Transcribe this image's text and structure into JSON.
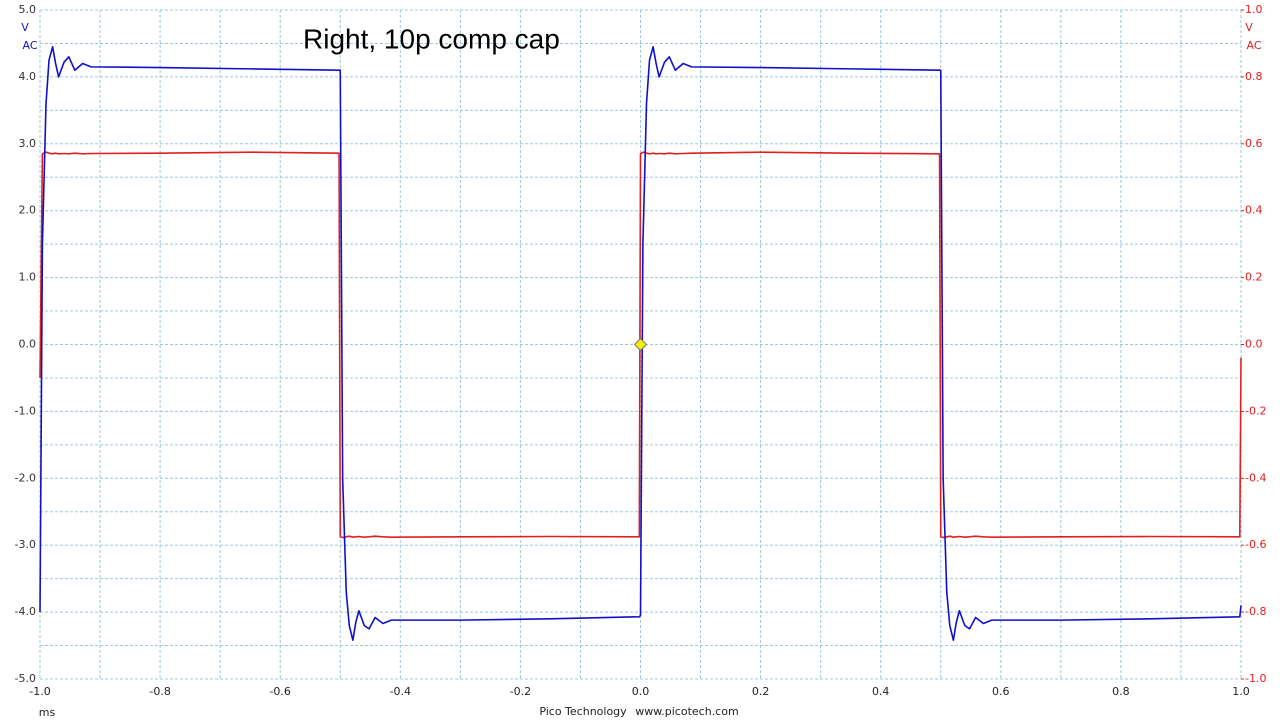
{
  "chart_data": {
    "type": "line",
    "title": "Right, 10p comp cap",
    "x_unit": "ms",
    "y_unit": "V",
    "y_coupling": "AC",
    "y2_unit": "V",
    "y2_coupling": "AC",
    "credit": "Pico Technology",
    "website": "www.picotech.com",
    "grid": true,
    "minor_grid": true,
    "xlim": [
      -1.0,
      1.0
    ],
    "xticks": [
      {
        "value": -1.0,
        "label": "-1.0"
      },
      -0.8,
      -0.6,
      -0.4,
      -0.2,
      {
        "value": 0.0,
        "label": "0.0"
      },
      0.2,
      0.4,
      0.6,
      0.8,
      {
        "value": 1.0,
        "label": "1.0"
      }
    ],
    "ylim": [
      -5.0,
      5.0
    ],
    "yticks": [
      {
        "value": 5.0,
        "label": "5.0"
      },
      {
        "value": 4.0,
        "label": "4.0"
      },
      {
        "value": 3.0,
        "label": "3.0"
      },
      {
        "value": 2.0,
        "label": "2.0"
      },
      {
        "value": 1.0,
        "label": "1.0"
      },
      {
        "value": 0.0,
        "label": "0.0"
      },
      {
        "value": -1.0,
        "label": "-1.0"
      },
      {
        "value": -2.0,
        "label": "-2.0"
      },
      {
        "value": -3.0,
        "label": "-3.0"
      },
      {
        "value": -4.0,
        "label": "-4.0"
      },
      {
        "value": -5.0,
        "label": "-5.0"
      }
    ],
    "y2lim": [
      -1.0,
      1.0
    ],
    "y2ticks": [
      {
        "value": 1.0,
        "label": "1.0"
      },
      0.8,
      0.6,
      0.4,
      0.2,
      {
        "value": 0.0,
        "label": "0.0"
      },
      -0.2,
      -0.4,
      -0.6,
      -0.8,
      {
        "value": -1.0,
        "label": "-1.0"
      }
    ],
    "trigger_x": 0,
    "trigger_y": 0,
    "x": [
      -1.0,
      -0.996,
      -0.99,
      -0.985,
      -0.979,
      -0.974,
      -0.969,
      -0.96,
      -0.952,
      -0.942,
      -0.929,
      -0.915,
      -0.8,
      -0.65,
      -0.502,
      -0.5,
      -0.496,
      -0.49,
      -0.485,
      -0.479,
      -0.474,
      -0.469,
      -0.46,
      -0.452,
      -0.442,
      -0.429,
      -0.415,
      -0.3,
      -0.15,
      -0.002,
      0.0,
      0.004,
      0.01,
      0.015,
      0.021,
      0.026,
      0.031,
      0.04,
      0.048,
      0.058,
      0.071,
      0.085,
      0.2,
      0.35,
      0.498,
      0.5,
      0.504,
      0.51,
      0.515,
      0.521,
      0.526,
      0.531,
      0.54,
      0.548,
      0.558,
      0.571,
      0.585,
      0.7,
      0.85,
      0.998,
      1.0
    ],
    "series": [
      {
        "color": "#e02020",
        "axis": "y2",
        "values": [
          -0.1,
          0.57,
          0.575,
          0.572,
          0.57,
          0.572,
          0.57,
          0.571,
          0.57,
          0.572,
          0.57,
          0.571,
          0.572,
          0.575,
          0.572,
          -0.575,
          -0.577,
          -0.575,
          -0.573,
          -0.576,
          -0.575,
          -0.574,
          -0.576,
          -0.575,
          -0.573,
          -0.575,
          -0.576,
          -0.575,
          -0.574,
          -0.575,
          0.57,
          0.575,
          0.572,
          0.57,
          0.572,
          0.57,
          0.571,
          0.57,
          0.572,
          0.57,
          0.571,
          0.572,
          0.575,
          0.572,
          0.57,
          -0.575,
          -0.577,
          -0.575,
          -0.573,
          -0.576,
          -0.575,
          -0.574,
          -0.576,
          -0.575,
          -0.573,
          -0.575,
          -0.576,
          -0.575,
          -0.574,
          -0.575,
          -0.04
        ]
      },
      {
        "color": "#1010c8",
        "values": [
          -4.0,
          1.5,
          3.6,
          4.25,
          4.45,
          4.2,
          4.0,
          4.22,
          4.3,
          4.1,
          4.2,
          4.15,
          4.14,
          4.12,
          4.1,
          4.1,
          -2.0,
          -3.7,
          -4.2,
          -4.42,
          -4.15,
          -3.98,
          -4.2,
          -4.25,
          -4.08,
          -4.17,
          -4.12,
          -4.12,
          -4.1,
          -4.07,
          -4.05,
          1.5,
          3.6,
          4.25,
          4.45,
          4.2,
          4.0,
          4.22,
          4.3,
          4.1,
          4.2,
          4.15,
          4.14,
          4.12,
          4.1,
          4.1,
          -2.0,
          -3.7,
          -4.2,
          -4.42,
          -4.15,
          -3.98,
          -4.2,
          -4.25,
          -4.08,
          -4.17,
          -4.12,
          -4.12,
          -4.1,
          -4.07,
          -3.9
        ]
      }
    ]
  }
}
